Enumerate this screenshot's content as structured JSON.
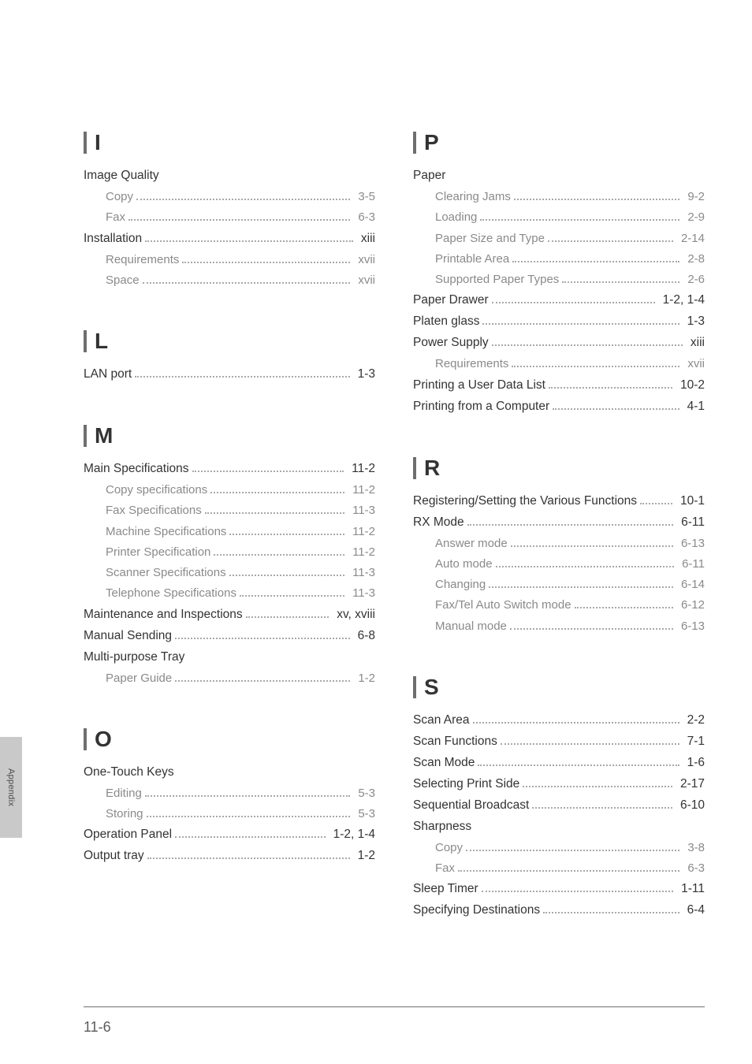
{
  "page_number": "11-6",
  "appendix_label": "Appendix",
  "colors": {
    "background": "#ffffff",
    "text_primary": "#333333",
    "text_sub": "#8a8a8c",
    "divider": "#6e6e70",
    "tab_bg": "#c9c9ca",
    "tab_text": "#4a4a4a",
    "dots": "#a9a9ab"
  },
  "typography": {
    "letter_fontsize": 28,
    "entry_fontsize": 15.5,
    "subentry_fontsize": 15,
    "page_number_fontsize": 18,
    "appendix_fontsize": 11
  },
  "left_sections": [
    {
      "letter": "I",
      "entries": [
        {
          "label": "Image Quality",
          "page": "",
          "sub": false
        },
        {
          "label": "Copy",
          "page": "3-5",
          "sub": true
        },
        {
          "label": "Fax",
          "page": "6-3",
          "sub": true
        },
        {
          "label": "Installation",
          "page": "xiii",
          "sub": false
        },
        {
          "label": "Requirements",
          "page": "xvii",
          "sub": true
        },
        {
          "label": "Space",
          "page": "xvii",
          "sub": true
        }
      ]
    },
    {
      "letter": "L",
      "entries": [
        {
          "label": "LAN port",
          "page": "1-3",
          "sub": false
        }
      ]
    },
    {
      "letter": "M",
      "entries": [
        {
          "label": "Main Specifications",
          "page": "11-2",
          "sub": false
        },
        {
          "label": "Copy specifications",
          "page": "11-2",
          "sub": true
        },
        {
          "label": "Fax Specifications",
          "page": "11-3",
          "sub": true
        },
        {
          "label": "Machine Specifications",
          "page": "11-2",
          "sub": true
        },
        {
          "label": "Printer Specification",
          "page": "11-2",
          "sub": true
        },
        {
          "label": "Scanner Specifications",
          "page": "11-3",
          "sub": true
        },
        {
          "label": "Telephone Specifications",
          "page": "11-3",
          "sub": true
        },
        {
          "label": "Maintenance and Inspections",
          "page": "xv, xviii",
          "sub": false
        },
        {
          "label": "Manual Sending",
          "page": "6-8",
          "sub": false
        },
        {
          "label": "Multi-purpose Tray",
          "page": "",
          "sub": false
        },
        {
          "label": "Paper Guide",
          "page": "1-2",
          "sub": true
        }
      ]
    },
    {
      "letter": "O",
      "entries": [
        {
          "label": "One-Touch Keys",
          "page": "",
          "sub": false
        },
        {
          "label": "Editing",
          "page": "5-3",
          "sub": true
        },
        {
          "label": "Storing",
          "page": "5-3",
          "sub": true
        },
        {
          "label": "Operation Panel",
          "page": "1-2, 1-4",
          "sub": false
        },
        {
          "label": "Output tray",
          "page": "1-2",
          "sub": false
        }
      ]
    }
  ],
  "right_sections": [
    {
      "letter": "P",
      "entries": [
        {
          "label": "Paper",
          "page": "",
          "sub": false
        },
        {
          "label": "Clearing Jams",
          "page": "9-2",
          "sub": true
        },
        {
          "label": "Loading",
          "page": "2-9",
          "sub": true
        },
        {
          "label": "Paper Size and Type",
          "page": "2-14",
          "sub": true
        },
        {
          "label": "Printable Area",
          "page": "2-8",
          "sub": true
        },
        {
          "label": "Supported Paper Types",
          "page": "2-6",
          "sub": true
        },
        {
          "label": "Paper Drawer",
          "page": "1-2, 1-4",
          "sub": false
        },
        {
          "label": "Platen glass",
          "page": "1-3",
          "sub": false
        },
        {
          "label": "Power Supply",
          "page": "xiii",
          "sub": false
        },
        {
          "label": "Requirements",
          "page": "xvii",
          "sub": true
        },
        {
          "label": "Printing a User Data List",
          "page": "10-2",
          "sub": false
        },
        {
          "label": "Printing from a Computer",
          "page": "4-1",
          "sub": false
        }
      ]
    },
    {
      "letter": "R",
      "entries": [
        {
          "label": "Registering/Setting the Various Functions",
          "page": "10-1",
          "sub": false
        },
        {
          "label": "RX Mode",
          "page": "6-11",
          "sub": false
        },
        {
          "label": "Answer mode",
          "page": "6-13",
          "sub": true
        },
        {
          "label": "Auto mode",
          "page": "6-11",
          "sub": true
        },
        {
          "label": "Changing",
          "page": "6-14",
          "sub": true
        },
        {
          "label": "Fax/Tel Auto Switch mode",
          "page": "6-12",
          "sub": true
        },
        {
          "label": "Manual mode",
          "page": "6-13",
          "sub": true
        }
      ]
    },
    {
      "letter": "S",
      "entries": [
        {
          "label": "Scan Area",
          "page": "2-2",
          "sub": false
        },
        {
          "label": "Scan Functions",
          "page": "7-1",
          "sub": false
        },
        {
          "label": "Scan Mode",
          "page": "1-6",
          "sub": false
        },
        {
          "label": "Selecting Print Side",
          "page": "2-17",
          "sub": false
        },
        {
          "label": "Sequential Broadcast",
          "page": "6-10",
          "sub": false
        },
        {
          "label": "Sharpness",
          "page": "",
          "sub": false
        },
        {
          "label": "Copy",
          "page": "3-8",
          "sub": true
        },
        {
          "label": "Fax",
          "page": "6-3",
          "sub": true
        },
        {
          "label": "Sleep Timer",
          "page": "1-11",
          "sub": false
        },
        {
          "label": "Specifying Destinations",
          "page": "6-4",
          "sub": false
        }
      ]
    }
  ]
}
